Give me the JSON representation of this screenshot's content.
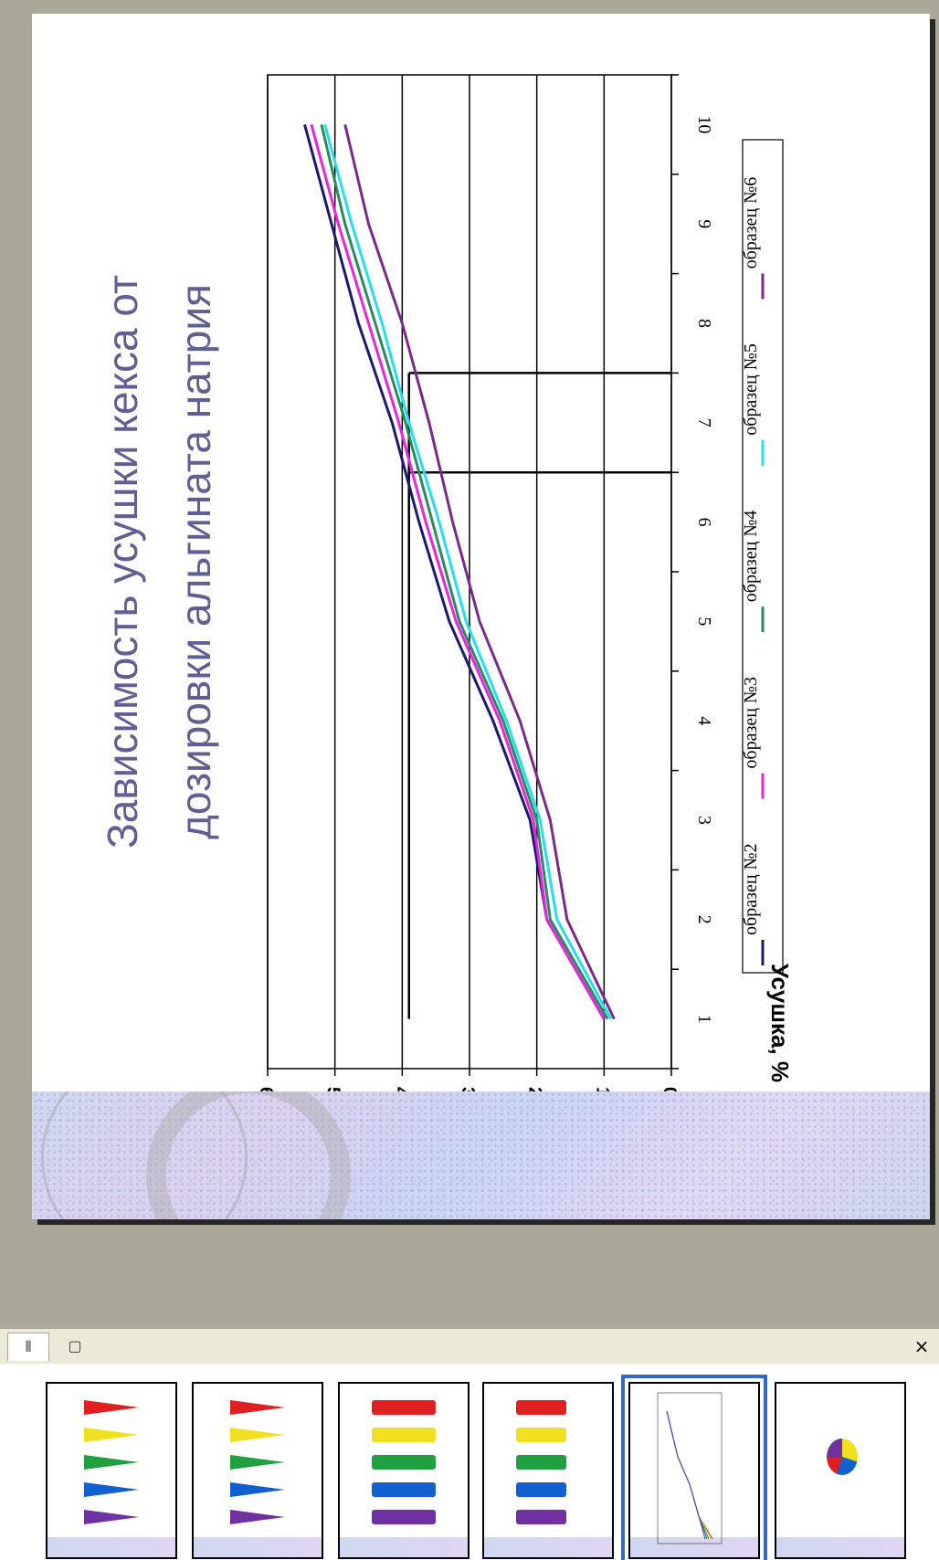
{
  "panel": {
    "tabs": [
      {
        "label": "⦀"
      },
      {
        "label": "▢"
      }
    ],
    "close_label": "×",
    "thumbnails": [
      {
        "id": "slide-1",
        "kind": "cones"
      },
      {
        "id": "slide-2",
        "kind": "cones"
      },
      {
        "id": "slide-3",
        "kind": "cylinders"
      },
      {
        "id": "slide-4",
        "kind": "bars"
      },
      {
        "id": "slide-5",
        "kind": "lines",
        "selected": true
      },
      {
        "id": "slide-6",
        "kind": "pie"
      }
    ]
  },
  "colors": {
    "workspace": "#aca899",
    "title": "#5f5f94",
    "selection": "#316ac5"
  },
  "slide": {
    "title_line1": "Зависимость усушки кекса от",
    "title_line2": "дозировки альгината натрия"
  },
  "chart_data": {
    "type": "line",
    "title": "Зависимость усушки кекса от дозировки альгината натрия",
    "ylabel": "Усушка, %",
    "xlabel": "",
    "x": [
      1,
      2,
      3,
      4,
      5,
      6,
      7,
      8,
      9,
      10
    ],
    "xticks": [
      "1",
      "2",
      "3",
      "4",
      "5",
      "6",
      "7",
      "8",
      "9",
      "10"
    ],
    "yticks": [
      "0",
      "1",
      "2",
      "3",
      "4",
      "5",
      "6"
    ],
    "ylim": [
      0,
      6
    ],
    "grid": true,
    "legend_position": "bottom",
    "series": [
      {
        "name": "образец №2",
        "color": "#1a1a70",
        "values": [
          1.0,
          1.85,
          2.1,
          2.65,
          3.3,
          3.75,
          4.15,
          4.65,
          5.05,
          5.45
        ]
      },
      {
        "name": "образец №3",
        "color": "#ee22dd",
        "values": [
          1.0,
          1.85,
          2.05,
          2.55,
          3.2,
          3.65,
          4.05,
          4.5,
          4.95,
          5.35
        ]
      },
      {
        "name": "образец №4",
        "color": "#2a8a60",
        "values": [
          0.95,
          1.8,
          2.0,
          2.5,
          3.15,
          3.55,
          3.95,
          4.4,
          4.85,
          5.2
        ]
      },
      {
        "name": "образец №5",
        "color": "#22e0e8",
        "values": [
          0.9,
          1.7,
          1.95,
          2.45,
          3.05,
          3.45,
          3.9,
          4.3,
          4.75,
          5.15
        ]
      },
      {
        "name": "образец №6",
        "color": "#7a2a88",
        "values": [
          0.85,
          1.55,
          1.8,
          2.25,
          2.85,
          3.25,
          3.6,
          4.0,
          4.5,
          4.85
        ]
      }
    ],
    "annotation_lines": {
      "y": 3.9,
      "x_values": [
        6.5,
        7.5
      ]
    }
  }
}
